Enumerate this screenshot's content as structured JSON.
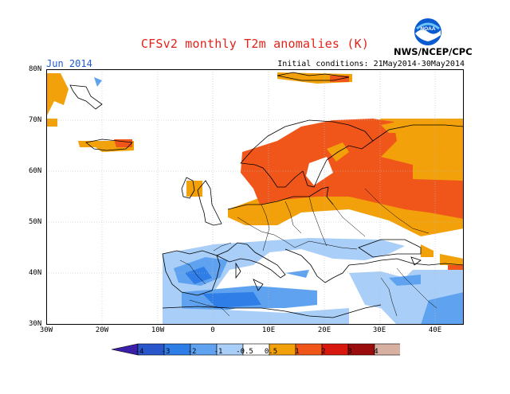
{
  "header": {
    "title": "CFSv2 monthly T2m anomalies (K)",
    "month": "Jun 2014",
    "initial_conditions": "Initial conditions: 21May2014-30May2014",
    "agency": "NWS/NCEP/CPC",
    "logo_text": "NOAA"
  },
  "map": {
    "lat_labels": [
      "80N",
      "70N",
      "60N",
      "50N",
      "40N",
      "30N"
    ],
    "lon_labels": [
      "30W",
      "20W",
      "10W",
      "0",
      "10E",
      "20E",
      "30E",
      "40E"
    ]
  },
  "colorbar": {
    "labels": [
      "-4",
      "-3",
      "-2",
      "-1",
      "-0.5",
      "0.5",
      "1",
      "2",
      "3",
      "4"
    ],
    "colors": [
      "#3c1fa8",
      "#2a56cc",
      "#2f7de6",
      "#5fa3f0",
      "#a9cef7",
      "#ffffff",
      "#f2a10a",
      "#f0561a",
      "#d8180f",
      "#9b0c0c",
      "#d7b0a2",
      "#6b3a2a"
    ]
  }
}
